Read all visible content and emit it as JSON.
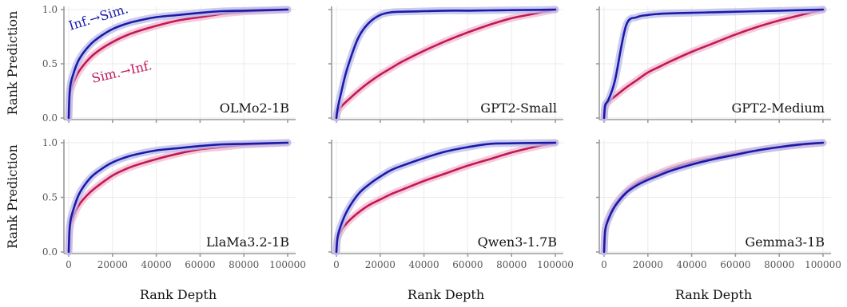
{
  "chart_data": {
    "type": "line",
    "xlabel": "Rank Depth",
    "ylabel": "Rank Prediction",
    "xlim": [
      0,
      100000
    ],
    "ylim": [
      0,
      1
    ],
    "x_ticks": [
      0,
      20000,
      40000,
      60000,
      80000,
      100000
    ],
    "x_tick_labels": [
      "0",
      "20000",
      "40000",
      "60000",
      "80000",
      "100000"
    ],
    "y_ticks": [
      0,
      0.5,
      1
    ],
    "y_tick_labels": [
      "0.0",
      "0.5",
      "1.0"
    ],
    "grid": true,
    "colors": {
      "inf_sim": "#1a1aaa",
      "sim_inf": "#c2185b",
      "inf_band": "#b9b9ea",
      "sim_band": "#f1b9cc"
    },
    "annotations": [
      {
        "text": "Inf.→Sim.",
        "series": "inf_sim"
      },
      {
        "text": "Sim.→Inf.",
        "series": "sim_inf"
      }
    ],
    "x": [
      0,
      500,
      2000,
      5000,
      10000,
      15000,
      20000,
      25000,
      30000,
      40000,
      50000,
      60000,
      70000,
      80000,
      90000,
      100000
    ],
    "panels": [
      {
        "title": "OLMo2-1B",
        "inf_sim": [
          0.0,
          0.26,
          0.4,
          0.55,
          0.68,
          0.76,
          0.82,
          0.86,
          0.89,
          0.93,
          0.95,
          0.97,
          0.985,
          0.99,
          0.995,
          1.0
        ],
        "sim_inf": [
          0.0,
          0.22,
          0.32,
          0.44,
          0.56,
          0.64,
          0.7,
          0.75,
          0.79,
          0.85,
          0.9,
          0.93,
          0.96,
          0.98,
          0.99,
          1.0
        ]
      },
      {
        "title": "GPT2-Small",
        "inf_sim": [
          0.0,
          0.08,
          0.22,
          0.46,
          0.74,
          0.88,
          0.95,
          0.975,
          0.98,
          0.985,
          0.99,
          0.99,
          0.993,
          0.995,
          0.997,
          1.0
        ],
        "sim_inf": [
          0.0,
          0.05,
          0.1,
          0.16,
          0.25,
          0.33,
          0.4,
          0.46,
          0.52,
          0.62,
          0.71,
          0.79,
          0.86,
          0.92,
          0.96,
          1.0
        ]
      },
      {
        "title": "GPT2-Medium",
        "inf_sim": [
          0.0,
          0.12,
          0.17,
          0.35,
          0.85,
          0.93,
          0.95,
          0.96,
          0.965,
          0.97,
          0.975,
          0.98,
          0.985,
          0.99,
          0.995,
          1.0
        ],
        "sim_inf": [
          0.0,
          0.1,
          0.15,
          0.2,
          0.28,
          0.35,
          0.42,
          0.47,
          0.52,
          0.61,
          0.69,
          0.77,
          0.84,
          0.9,
          0.95,
          1.0
        ]
      },
      {
        "title": "LlaMa3.2-1B",
        "inf_sim": [
          0.0,
          0.24,
          0.38,
          0.54,
          0.68,
          0.76,
          0.82,
          0.86,
          0.89,
          0.93,
          0.95,
          0.97,
          0.985,
          0.99,
          0.995,
          1.0
        ],
        "sim_inf": [
          0.0,
          0.22,
          0.32,
          0.44,
          0.55,
          0.63,
          0.7,
          0.75,
          0.79,
          0.85,
          0.9,
          0.94,
          0.96,
          0.98,
          0.99,
          1.0
        ]
      },
      {
        "title": "Qwen3-1.7B",
        "inf_sim": [
          0.0,
          0.13,
          0.24,
          0.38,
          0.53,
          0.62,
          0.69,
          0.75,
          0.79,
          0.86,
          0.92,
          0.96,
          0.99,
          0.995,
          0.998,
          1.0
        ],
        "sim_inf": [
          0.0,
          0.12,
          0.19,
          0.27,
          0.36,
          0.43,
          0.48,
          0.53,
          0.57,
          0.65,
          0.72,
          0.79,
          0.85,
          0.91,
          0.96,
          1.0
        ]
      },
      {
        "title": "Gemma3-1B",
        "inf_sim": [
          0.0,
          0.2,
          0.3,
          0.42,
          0.54,
          0.61,
          0.66,
          0.7,
          0.74,
          0.8,
          0.85,
          0.89,
          0.93,
          0.96,
          0.985,
          1.0
        ],
        "sim_inf": [
          0.0,
          0.2,
          0.31,
          0.43,
          0.55,
          0.63,
          0.68,
          0.72,
          0.76,
          0.82,
          0.86,
          0.9,
          0.93,
          0.96,
          0.98,
          1.0
        ]
      }
    ]
  }
}
